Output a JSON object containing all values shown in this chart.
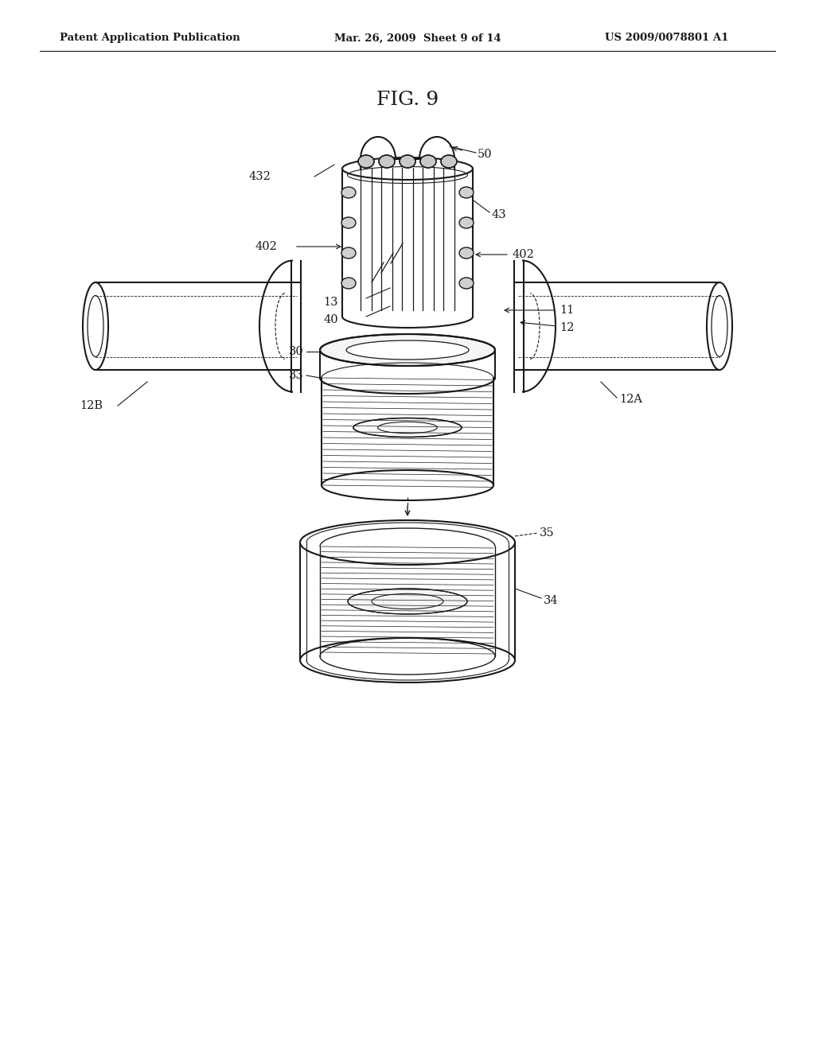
{
  "background_color": "#ffffff",
  "header_left": "Patent Application Publication",
  "header_center": "Mar. 26, 2009  Sheet 9 of 14",
  "header_right": "US 2009/0078801 A1",
  "figure_title": "FIG. 9",
  "line_color": "#1a1a1a",
  "text_color": "#1a1a1a",
  "fig_width": 10.24,
  "fig_height": 13.2,
  "dpi": 100
}
